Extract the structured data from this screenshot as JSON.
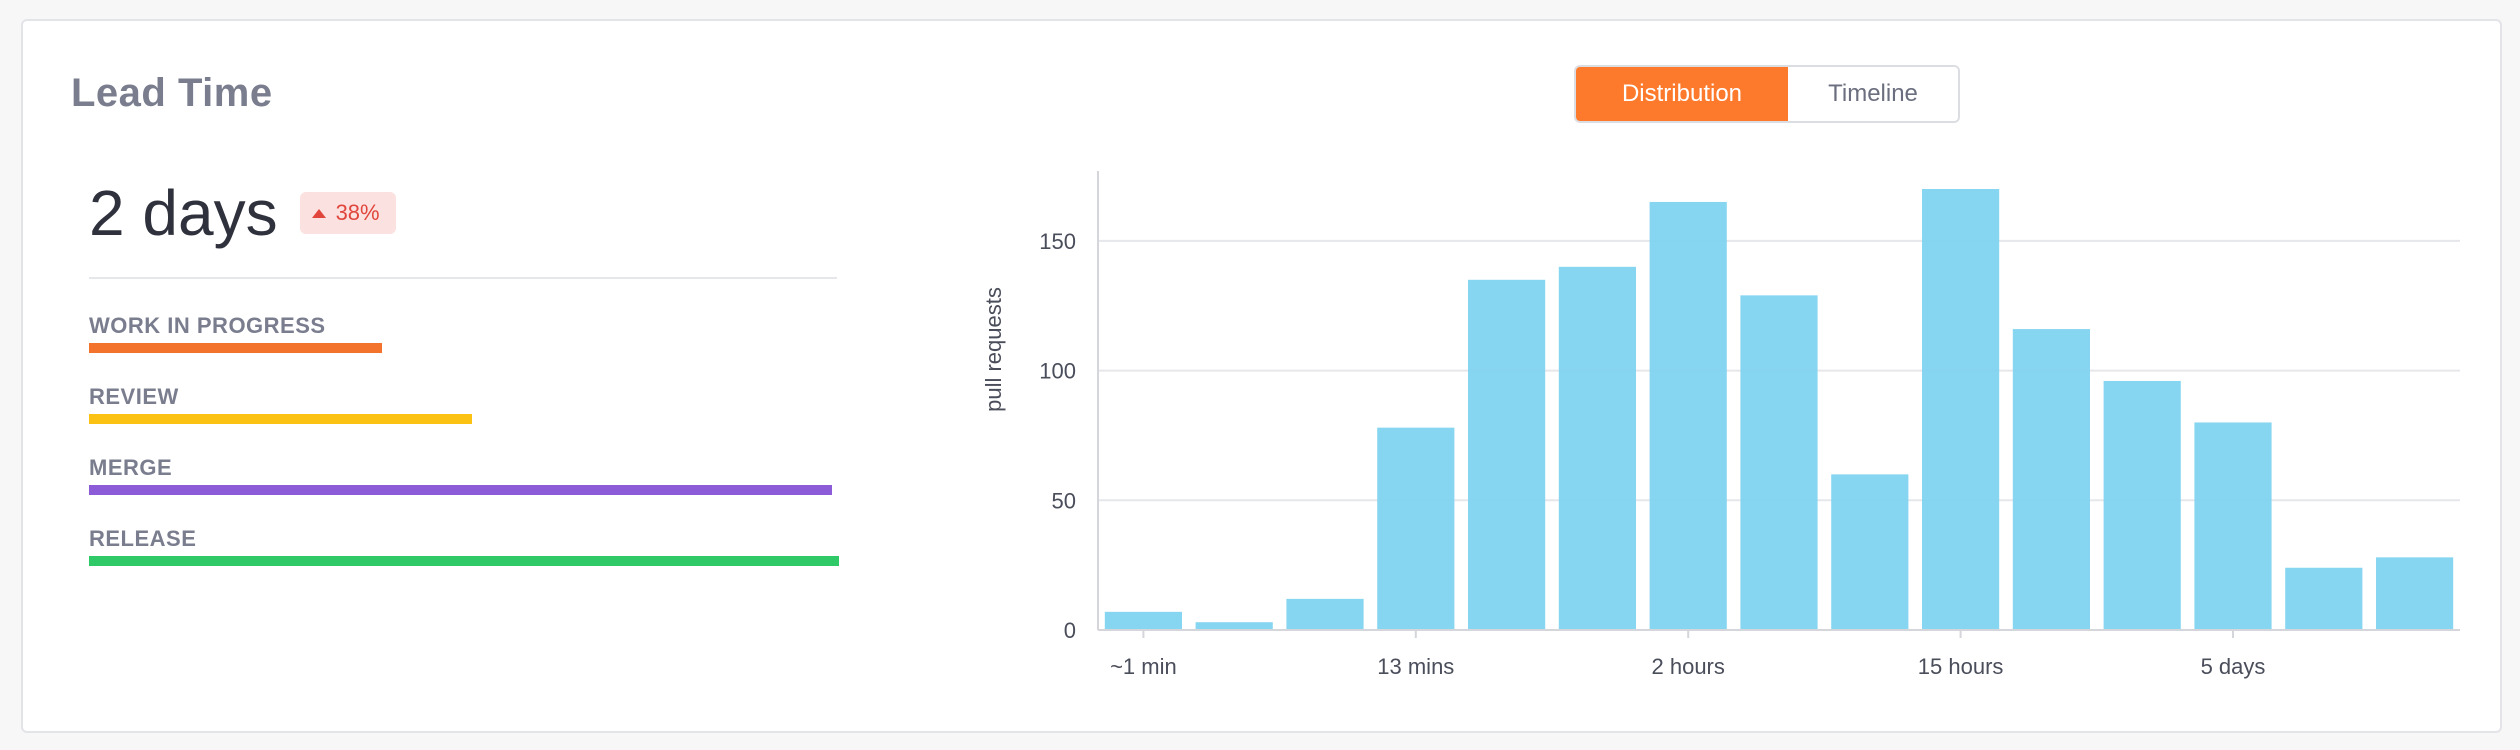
{
  "card": {
    "title": "Lead Time",
    "value": "2 days",
    "badge": "38%"
  },
  "stages": [
    {
      "label": "WORK IN PROGRESS",
      "fraction": 0.39,
      "color": "#f4732c"
    },
    {
      "label": "REVIEW",
      "fraction": 0.51,
      "color": "#fbc214"
    },
    {
      "label": "MERGE",
      "fraction": 0.99,
      "color": "#8b5bd8"
    },
    {
      "label": "RELEASE",
      "fraction": 1.0,
      "color": "#2fc967"
    }
  ],
  "toggle": {
    "active_label": "Distribution",
    "inactive_label": "Timeline"
  },
  "colors": {
    "accent": "#fd7a2c",
    "bar": "#7fd3f0",
    "badge_text": "#e0463c"
  },
  "chart_data": {
    "type": "bar",
    "ylabel": "pull requests",
    "xlabel": "",
    "ylim": [
      0,
      170
    ],
    "yticks": [
      0,
      50,
      100,
      150
    ],
    "grid": true,
    "xtick_labels": [
      {
        "index": 0,
        "label": "~1 min"
      },
      {
        "index": 3,
        "label": "13 mins"
      },
      {
        "index": 6,
        "label": "2 hours"
      },
      {
        "index": 9,
        "label": "15 hours"
      },
      {
        "index": 12,
        "label": "5 days"
      }
    ],
    "values": [
      7,
      3,
      12,
      78,
      135,
      140,
      165,
      129,
      60,
      170,
      116,
      96,
      80,
      24,
      28
    ]
  }
}
